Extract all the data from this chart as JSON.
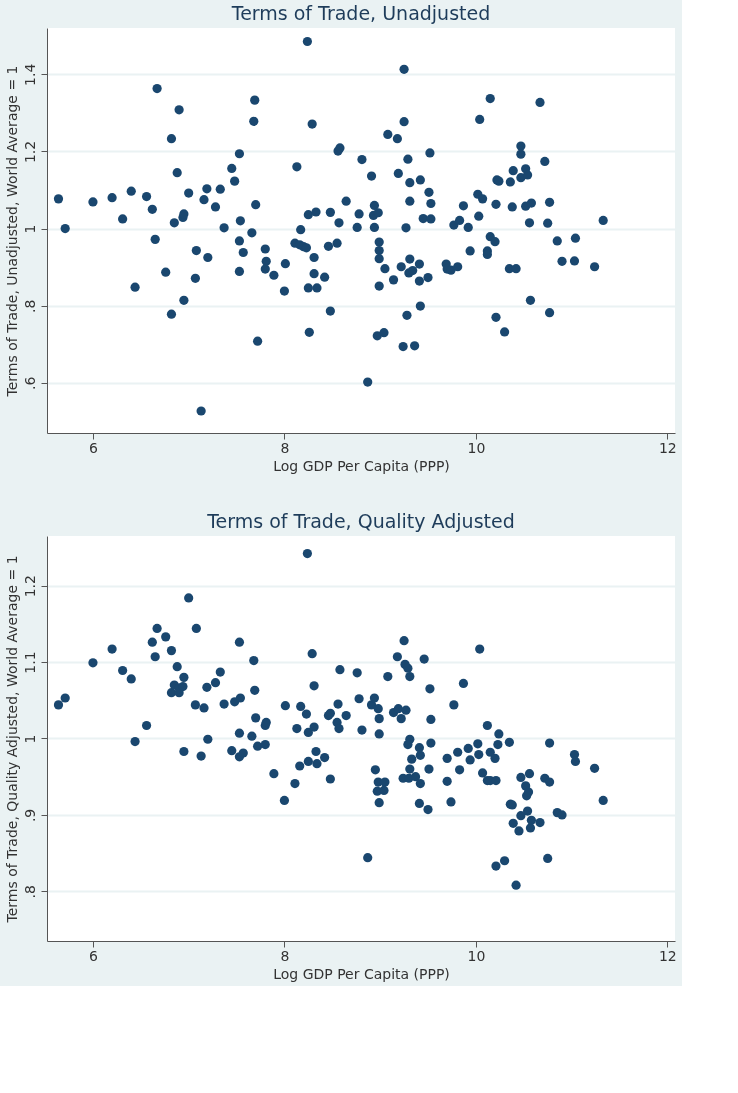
{
  "chart_data": [
    {
      "type": "scatter",
      "title": "Terms of Trade, Unadjusted",
      "xlabel": "Log GDP Per Capita (PPP)",
      "ylabel": "Terms of Trade, Unadjusted, World Average = 1",
      "xlim": [
        5.52,
        12.08
      ],
      "ylim": [
        0.47,
        1.52
      ],
      "xticks": [
        6,
        8,
        10,
        12
      ],
      "yticks": [
        {
          "value": 0.6,
          "label": ".6"
        },
        {
          "value": 0.8,
          "label": ".8"
        },
        {
          "value": 1,
          "label": "1"
        },
        {
          "value": 1.2,
          "label": "1.2"
        },
        {
          "value": 1.4,
          "label": "1.4"
        }
      ],
      "grid": "y",
      "marker": "circle",
      "series": [
        {
          "color": "#1a476f",
          "x": [
            5.64,
            5.71,
            6.0,
            6.2,
            6.31,
            6.4,
            6.44,
            6.56,
            6.62,
            6.65,
            6.67,
            6.76,
            6.82,
            6.82,
            6.85,
            6.88,
            6.9,
            6.94,
            6.95,
            6.95,
            7.0,
            7.08,
            7.07,
            7.13,
            7.16,
            7.19,
            7.2,
            7.28,
            7.33,
            7.37,
            7.45,
            7.48,
            7.53,
            7.53,
            7.54,
            7.53,
            7.57,
            7.66,
            7.68,
            7.69,
            7.7,
            7.72,
            7.8,
            7.81,
            7.8,
            7.89,
            8.01,
            8.0,
            8.11,
            8.13,
            8.16,
            8.17,
            8.2,
            8.23,
            8.24,
            8.25,
            8.25,
            8.26,
            8.29,
            8.31,
            8.31,
            8.33,
            8.34,
            8.42,
            8.46,
            8.48,
            8.48,
            8.56,
            8.58,
            8.55,
            8.57,
            8.645,
            8.76,
            8.78,
            8.81,
            8.87,
            8.91,
            8.94,
            8.93,
            8.98,
            8.94,
            8.99,
            8.99,
            8.99,
            8.97,
            9.04,
            9.05,
            8.99,
            9.08,
            9.14,
            9.18,
            9.19,
            9.22,
            9.24,
            9.25,
            9.25,
            9.27,
            9.28,
            9.29,
            9.31,
            9.31,
            9.31,
            9.3,
            9.34,
            9.36,
            9.41,
            9.41,
            9.42,
            9.42,
            9.45,
            9.5,
            9.51,
            9.52,
            9.53,
            9.53,
            9.69,
            9.7,
            9.74,
            9.81,
            9.77,
            9.83,
            9.87,
            9.92,
            9.94,
            10.03,
            10.02,
            10.07,
            10.04,
            10.15,
            10.2,
            10.12,
            10.12,
            10.15,
            10.21,
            10.21,
            10.22,
            10.24,
            10.3,
            10.35,
            10.42,
            10.36,
            10.38,
            10.39,
            10.47,
            10.47,
            10.47,
            10.52,
            10.54,
            10.52,
            10.58,
            10.56,
            10.57,
            10.67,
            10.72,
            10.75,
            10.77,
            10.77,
            10.85,
            10.9,
            11.03,
            11.04,
            11.24,
            11.33
          ],
          "values": [
            1.077,
            1.0,
            1.069,
            1.08,
            1.025,
            1.097,
            0.848,
            1.083,
            1.05,
            0.972,
            1.363,
            0.887,
            0.778,
            1.233,
            1.015,
            1.145,
            1.308,
            1.029,
            1.038,
            0.814,
            1.092,
            0.943,
            0.871,
            0.527,
            1.075,
            1.103,
            0.925,
            1.056,
            1.102,
            1.002,
            1.156,
            1.123,
            1.194,
            0.968,
            1.02,
            0.889,
            0.938,
            0.989,
            1.278,
            1.333,
            1.062,
            0.708,
            0.947,
            0.915,
            0.895,
            0.879,
            0.909,
            0.838,
            0.962,
            1.16,
            0.958,
            0.997,
            0.953,
            0.95,
            1.485,
            1.036,
            0.846,
            0.731,
            1.271,
            0.925,
            0.883,
            1.043,
            0.846,
            0.874,
            0.954,
            1.042,
            0.786,
            1.201,
            1.209,
            0.962,
            1.015,
            1.071,
            1.003,
            1.038,
            1.179,
            0.602,
            1.136,
            1.06,
            1.034,
            1.041,
            1.003,
            0.965,
            0.943,
            0.922,
            0.722,
            0.73,
            0.896,
            0.851,
            1.244,
            0.867,
            1.233,
            1.143,
            0.901,
            0.694,
            1.413,
            1.277,
            1.002,
            0.775,
            1.18,
            1.119,
            1.071,
            0.921,
            0.885,
            0.891,
            0.696,
            0.908,
            0.864,
            0.799,
            1.126,
            1.026,
            0.873,
            1.094,
            1.196,
            1.065,
            1.025,
            0.908,
            0.895,
            0.892,
            0.901,
            1.009,
            1.021,
            1.059,
            1.003,
            0.942,
            1.032,
            1.089,
            1.077,
            1.283,
            0.979,
            0.966,
            0.942,
            0.933,
            1.337,
            1.063,
            0.77,
            1.126,
            1.123,
            0.732,
            0.896,
            0.896,
            1.121,
            1.056,
            1.15,
            1.214,
            1.193,
            1.132,
            1.155,
            1.139,
            1.058,
            1.066,
            1.015,
            0.814,
            1.327,
            1.174,
            1.014,
            1.068,
            0.782,
            0.968,
            0.915,
            0.916,
            0.975,
            0.901,
            1.021
          ]
        }
      ]
    },
    {
      "type": "scatter",
      "title": "Terms of Trade, Quality Adjusted",
      "xlabel": "Log GDP Per Capita (PPP)",
      "ylabel": "Terms of Trade, Quality Adjusted, World Average = 1",
      "xlim": [
        5.52,
        12.08
      ],
      "ylim": [
        0.735,
        1.265
      ],
      "xticks": [
        6,
        8,
        10,
        12
      ],
      "yticks": [
        {
          "value": 0.8,
          "label": ".8"
        },
        {
          "value": 0.9,
          "label": ".9"
        },
        {
          "value": 1,
          "label": "1"
        },
        {
          "value": 1.1,
          "label": "1.1"
        },
        {
          "value": 1.2,
          "label": "1.2"
        }
      ],
      "grid": "y",
      "marker": "circle",
      "series": [
        {
          "color": "#1a476f",
          "x": [
            5.64,
            5.71,
            6.0,
            6.2,
            6.31,
            6.4,
            6.44,
            6.56,
            6.62,
            6.65,
            6.67,
            6.76,
            6.82,
            6.82,
            6.85,
            6.88,
            6.9,
            6.9,
            6.94,
            6.95,
            6.95,
            7.0,
            7.08,
            7.07,
            7.13,
            7.16,
            7.19,
            7.2,
            7.28,
            7.33,
            7.37,
            7.45,
            7.48,
            7.53,
            7.53,
            7.54,
            7.53,
            7.57,
            7.66,
            7.68,
            7.69,
            7.7,
            7.72,
            7.8,
            7.81,
            7.8,
            7.89,
            8.01,
            8.0,
            8.11,
            8.13,
            8.16,
            8.17,
            8.23,
            8.24,
            8.25,
            8.25,
            8.29,
            8.31,
            8.31,
            8.33,
            8.34,
            8.42,
            8.46,
            8.48,
            8.48,
            8.56,
            8.55,
            8.57,
            8.58,
            8.645,
            8.76,
            8.78,
            8.81,
            8.87,
            8.91,
            8.94,
            8.95,
            8.98,
            8.99,
            8.99,
            8.99,
            8.97,
            8.98,
            9.05,
            9.04,
            9.08,
            9.14,
            9.18,
            9.19,
            9.22,
            9.24,
            9.25,
            9.26,
            9.29,
            9.31,
            9.27,
            9.31,
            9.29,
            9.31,
            9.3,
            9.33,
            9.37,
            9.41,
            9.42,
            9.42,
            9.41,
            9.46,
            9.5,
            9.51,
            9.52,
            9.53,
            9.53,
            9.7,
            9.7,
            9.74,
            9.77,
            9.81,
            9.83,
            9.87,
            9.92,
            9.94,
            10.02,
            10.03,
            10.04,
            10.07,
            10.12,
            10.15,
            10.2,
            10.12,
            10.15,
            10.21,
            10.21,
            10.24,
            10.23,
            10.3,
            10.35,
            10.36,
            10.38,
            10.42,
            10.39,
            10.45,
            10.47,
            10.47,
            10.52,
            10.53,
            10.54,
            10.56,
            10.55,
            10.57,
            10.58,
            10.67,
            10.72,
            10.77,
            10.75,
            10.77,
            10.85,
            10.9,
            11.03,
            11.04,
            11.24,
            11.33
          ],
          "values": [
            1.044,
            1.053,
            1.099,
            1.117,
            1.089,
            1.078,
            0.996,
            1.017,
            1.126,
            1.107,
            1.144,
            1.133,
            1.115,
            1.06,
            1.07,
            1.094,
            1.06,
            1.066,
            1.068,
            1.08,
            0.983,
            1.184,
            1.144,
            1.044,
            0.977,
            1.04,
            1.067,
            0.999,
            1.073,
            1.087,
            1.045,
            0.984,
            1.048,
            1.126,
            1.007,
            1.053,
            0.976,
            0.981,
            1.003,
            1.102,
            1.063,
            1.027,
            0.99,
            1.017,
            1.021,
            0.992,
            0.954,
            1.043,
            0.919,
            0.941,
            1.013,
            0.964,
            1.042,
            1.032,
            1.242,
            1.008,
            0.97,
            1.111,
            1.069,
            1.015,
            0.983,
            0.967,
            0.975,
            1.03,
            1.033,
            0.947,
            1.045,
            1.021,
            1.013,
            1.09,
            1.03,
            1.086,
            1.052,
            1.011,
            0.844,
            1.044,
            1.053,
            0.959,
            1.039,
            1.026,
            1.006,
            0.916,
            0.931,
            0.943,
            0.943,
            0.932,
            1.081,
            1.034,
            1.107,
            1.039,
            1.026,
            0.948,
            1.128,
            1.097,
            1.092,
            1.081,
            1.037,
            0.999,
            0.992,
            0.96,
            0.948,
            0.973,
            0.95,
            0.988,
            0.978,
            0.941,
            0.915,
            1.104,
            0.907,
            0.96,
            1.065,
            1.025,
            0.994,
            0.974,
            0.944,
            0.917,
            1.044,
            0.982,
            0.959,
            1.072,
            0.987,
            0.972,
            0.993,
            0.979,
            1.117,
            0.955,
            0.945,
            0.982,
            0.974,
            1.017,
            0.945,
            0.945,
            0.833,
            1.006,
            0.992,
            0.84,
            0.995,
            0.914,
            0.913,
            0.808,
            0.889,
            0.879,
            0.899,
            0.949,
            0.938,
            0.925,
            0.905,
            0.954,
            0.93,
            0.883,
            0.893,
            0.89,
            0.948,
            0.943,
            0.843,
            0.994,
            0.903,
            0.9,
            0.979,
            0.97,
            0.961,
            0.919
          ]
        }
      ]
    }
  ]
}
